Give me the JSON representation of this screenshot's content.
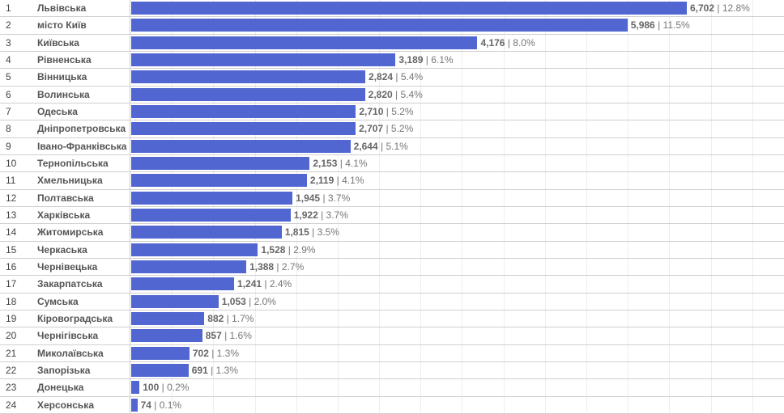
{
  "chart_data": {
    "type": "bar",
    "orientation": "horizontal",
    "bar_color": "#5166d0",
    "grid": true,
    "xlim": [
      0,
      7900
    ],
    "rows": [
      {
        "rank": "1",
        "name": "Львівська",
        "value": 6702,
        "value_label": "6,702",
        "pct": "12.8%"
      },
      {
        "rank": "2",
        "name": "місто Київ",
        "value": 5986,
        "value_label": "5,986",
        "pct": "11.5%"
      },
      {
        "rank": "3",
        "name": "Київська",
        "value": 4176,
        "value_label": "4,176",
        "pct": "8.0%"
      },
      {
        "rank": "4",
        "name": "Рівненська",
        "value": 3189,
        "value_label": "3,189",
        "pct": "6.1%"
      },
      {
        "rank": "5",
        "name": "Вінницька",
        "value": 2824,
        "value_label": "2,824",
        "pct": "5.4%"
      },
      {
        "rank": "6",
        "name": "Волинська",
        "value": 2820,
        "value_label": "2,820",
        "pct": "5.4%"
      },
      {
        "rank": "7",
        "name": "Одеська",
        "value": 2710,
        "value_label": "2,710",
        "pct": "5.2%"
      },
      {
        "rank": "8",
        "name": "Дніпропетровська",
        "value": 2707,
        "value_label": "2,707",
        "pct": "5.2%"
      },
      {
        "rank": "9",
        "name": "Івано-Франківська",
        "value": 2644,
        "value_label": "2,644",
        "pct": "5.1%"
      },
      {
        "rank": "10",
        "name": "Тернопільська",
        "value": 2153,
        "value_label": "2,153",
        "pct": "4.1%"
      },
      {
        "rank": "11",
        "name": "Хмельницька",
        "value": 2119,
        "value_label": "2,119",
        "pct": "4.1%"
      },
      {
        "rank": "12",
        "name": "Полтавська",
        "value": 1945,
        "value_label": "1,945",
        "pct": "3.7%"
      },
      {
        "rank": "13",
        "name": "Харківська",
        "value": 1922,
        "value_label": "1,922",
        "pct": "3.7%"
      },
      {
        "rank": "14",
        "name": "Житомирська",
        "value": 1815,
        "value_label": "1,815",
        "pct": "3.5%"
      },
      {
        "rank": "15",
        "name": "Черкаська",
        "value": 1528,
        "value_label": "1,528",
        "pct": "2.9%"
      },
      {
        "rank": "16",
        "name": "Чернівецька",
        "value": 1388,
        "value_label": "1,388",
        "pct": "2.7%"
      },
      {
        "rank": "17",
        "name": "Закарпатська",
        "value": 1241,
        "value_label": "1,241",
        "pct": "2.4%"
      },
      {
        "rank": "18",
        "name": "Сумська",
        "value": 1053,
        "value_label": "1,053",
        "pct": "2.0%"
      },
      {
        "rank": "19",
        "name": "Кіровоградська",
        "value": 882,
        "value_label": "882",
        "pct": "1.7%"
      },
      {
        "rank": "20",
        "name": "Чернігівська",
        "value": 857,
        "value_label": "857",
        "pct": "1.6%"
      },
      {
        "rank": "21",
        "name": "Миколаївська",
        "value": 702,
        "value_label": "702",
        "pct": "1.3%"
      },
      {
        "rank": "22",
        "name": "Запорізька",
        "value": 691,
        "value_label": "691",
        "pct": "1.3%"
      },
      {
        "rank": "23",
        "name": "Донецька",
        "value": 100,
        "value_label": "100",
        "pct": "0.2%"
      },
      {
        "rank": "24",
        "name": "Херсонська",
        "value": 74,
        "value_label": "74",
        "pct": "0.1%"
      }
    ]
  }
}
